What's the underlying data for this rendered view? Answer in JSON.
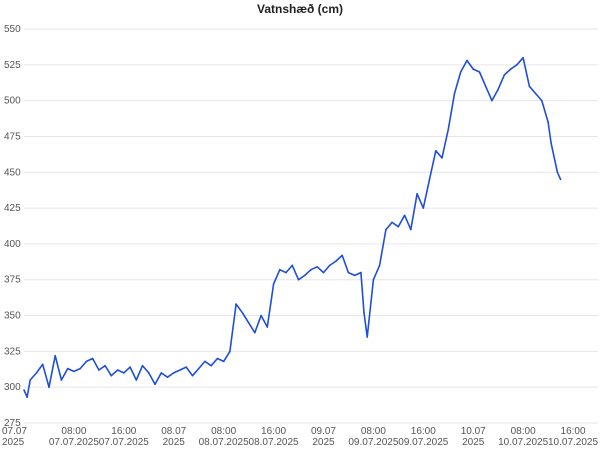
{
  "chart_data": {
    "type": "line",
    "title": "Vatnshæð (cm)",
    "xlabel": "",
    "ylabel": "",
    "ylim": [
      275,
      550
    ],
    "yticks": [
      275,
      300,
      325,
      350,
      375,
      400,
      425,
      450,
      475,
      500,
      525,
      550
    ],
    "grid": true,
    "legend": "none",
    "xlim": [
      "2025-07-07 00:00",
      "2025-07-10 20:00"
    ],
    "xticks": [
      {
        "x": "2025-07-07 00:00",
        "line1": "07.07",
        "line2": "2025"
      },
      {
        "x": "2025-07-07 08:00",
        "line1": "08:00",
        "line2": "07.07.2025"
      },
      {
        "x": "2025-07-07 16:00",
        "line1": "16:00",
        "line2": "07.07.2025"
      },
      {
        "x": "2025-07-08 00:00",
        "line1": "08.07",
        "line2": "2025"
      },
      {
        "x": "2025-07-08 08:00",
        "line1": "08:00",
        "line2": "08.07.2025"
      },
      {
        "x": "2025-07-08 16:00",
        "line1": "16:00",
        "line2": "08.07.2025"
      },
      {
        "x": "2025-07-09 00:00",
        "line1": "09.07",
        "line2": "2025"
      },
      {
        "x": "2025-07-09 08:00",
        "line1": "08:00",
        "line2": "09.07.2025"
      },
      {
        "x": "2025-07-09 16:00",
        "line1": "16:00",
        "line2": "09.07.2025"
      },
      {
        "x": "2025-07-10 00:00",
        "line1": "10.07",
        "line2": "2025"
      },
      {
        "x": "2025-07-10 08:00",
        "line1": "08:00",
        "line2": "10.07.2025"
      },
      {
        "x": "2025-07-10 16:00",
        "line1": "16:00",
        "line2": "10.07.2025"
      }
    ],
    "colors": {
      "line": "#1f4fd8",
      "grid": "#e6e6e6"
    },
    "series": [
      {
        "x": [
          "2025-07-07 00:00",
          "2025-07-07 00:30",
          "2025-07-07 01:00",
          "2025-07-07 02:00",
          "2025-07-07 03:00",
          "2025-07-07 04:00",
          "2025-07-07 05:00",
          "2025-07-07 06:00",
          "2025-07-07 07:00",
          "2025-07-07 08:00",
          "2025-07-07 09:00",
          "2025-07-07 10:00",
          "2025-07-07 11:00",
          "2025-07-07 12:00",
          "2025-07-07 13:00",
          "2025-07-07 14:00",
          "2025-07-07 15:00",
          "2025-07-07 16:00",
          "2025-07-07 17:00",
          "2025-07-07 18:00",
          "2025-07-07 19:00",
          "2025-07-07 20:00",
          "2025-07-07 21:00",
          "2025-07-07 22:00",
          "2025-07-07 23:00",
          "2025-07-08 00:00",
          "2025-07-08 01:00",
          "2025-07-08 02:00",
          "2025-07-08 03:00",
          "2025-07-08 04:00",
          "2025-07-08 05:00",
          "2025-07-08 06:00",
          "2025-07-08 07:00",
          "2025-07-08 08:00",
          "2025-07-08 09:00",
          "2025-07-08 10:00",
          "2025-07-08 11:00",
          "2025-07-08 12:00",
          "2025-07-08 13:00",
          "2025-07-08 14:00",
          "2025-07-08 15:00",
          "2025-07-08 16:00",
          "2025-07-08 17:00",
          "2025-07-08 18:00",
          "2025-07-08 19:00",
          "2025-07-08 20:00",
          "2025-07-08 21:00",
          "2025-07-08 22:00",
          "2025-07-08 23:00",
          "2025-07-09 00:00",
          "2025-07-09 01:00",
          "2025-07-09 02:00",
          "2025-07-09 03:00",
          "2025-07-09 04:00",
          "2025-07-09 05:00",
          "2025-07-09 06:00",
          "2025-07-09 06:30",
          "2025-07-09 07:00",
          "2025-07-09 07:30",
          "2025-07-09 08:00",
          "2025-07-09 09:00",
          "2025-07-09 10:00",
          "2025-07-09 11:00",
          "2025-07-09 12:00",
          "2025-07-09 13:00",
          "2025-07-09 14:00",
          "2025-07-09 15:00",
          "2025-07-09 16:00",
          "2025-07-09 17:00",
          "2025-07-09 18:00",
          "2025-07-09 19:00",
          "2025-07-09 20:00",
          "2025-07-09 21:00",
          "2025-07-09 22:00",
          "2025-07-09 23:00",
          "2025-07-10 00:00",
          "2025-07-10 01:00",
          "2025-07-10 02:00",
          "2025-07-10 03:00",
          "2025-07-10 04:00",
          "2025-07-10 05:00",
          "2025-07-10 06:00",
          "2025-07-10 07:00",
          "2025-07-10 08:00",
          "2025-07-10 09:00",
          "2025-07-10 10:00",
          "2025-07-10 11:00",
          "2025-07-10 12:00",
          "2025-07-10 12:30",
          "2025-07-10 13:00",
          "2025-07-10 13:30",
          "2025-07-10 14:00"
        ],
        "values": [
          298,
          293,
          305,
          310,
          316,
          300,
          322,
          305,
          313,
          311,
          313,
          318,
          320,
          312,
          315,
          308,
          312,
          310,
          314,
          305,
          315,
          310,
          302,
          310,
          307,
          310,
          312,
          314,
          308,
          313,
          318,
          315,
          320,
          318,
          325,
          358,
          352,
          345,
          338,
          350,
          342,
          372,
          382,
          380,
          385,
          375,
          378,
          382,
          384,
          380,
          385,
          388,
          392,
          380,
          378,
          380,
          352,
          335,
          355,
          375,
          385,
          410,
          415,
          412,
          420,
          410,
          435,
          425,
          445,
          465,
          460,
          480,
          505,
          520,
          528,
          522,
          520,
          510,
          500,
          508,
          518,
          522,
          525,
          530,
          510,
          505,
          500,
          485,
          470,
          460,
          450,
          445
        ]
      }
    ]
  }
}
